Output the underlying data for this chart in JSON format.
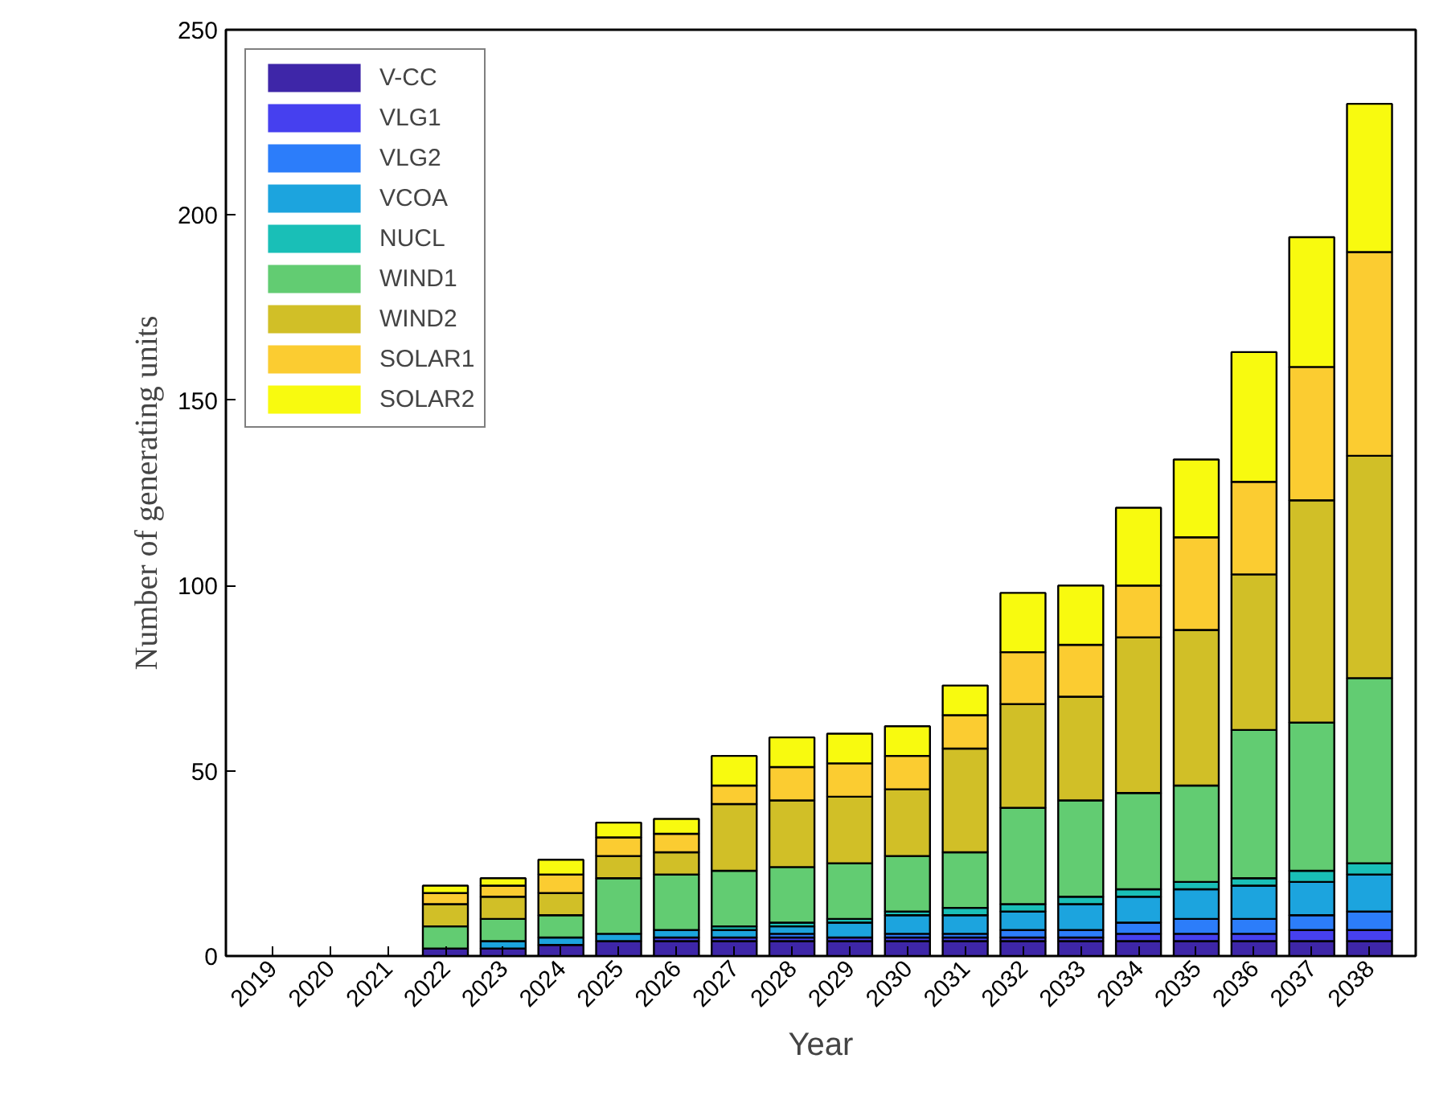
{
  "chart_data": {
    "type": "bar",
    "stacked": true,
    "xlabel": "Year",
    "ylabel": "Number of generating units",
    "categories": [
      "2019",
      "2020",
      "2021",
      "2022",
      "2023",
      "2024",
      "2025",
      "2026",
      "2027",
      "2028",
      "2029",
      "2030",
      "2031",
      "2032",
      "2033",
      "2034",
      "2035",
      "2036",
      "2037",
      "2038"
    ],
    "ylim": [
      0,
      250
    ],
    "yticks": [
      0,
      50,
      100,
      150,
      200,
      250
    ],
    "grid": false,
    "legend": "top left",
    "series": [
      {
        "name": "V-CC",
        "color": "#3e26a8",
        "values": [
          0,
          0,
          0,
          2,
          2,
          3,
          4,
          4,
          4,
          4,
          4,
          4,
          4,
          4,
          4,
          4,
          4,
          4,
          4,
          4
        ]
      },
      {
        "name": "VLG1",
        "color": "#4640ef",
        "values": [
          0,
          0,
          0,
          0,
          0,
          0,
          0,
          1,
          1,
          1,
          1,
          1,
          1,
          1,
          1,
          2,
          2,
          2,
          3,
          3
        ]
      },
      {
        "name": "VLG2",
        "color": "#2c7dfa",
        "values": [
          0,
          0,
          0,
          0,
          0,
          0,
          0,
          0,
          0,
          1,
          0,
          1,
          1,
          2,
          2,
          3,
          4,
          4,
          4,
          5
        ]
      },
      {
        "name": "VCOA",
        "color": "#1ca4de",
        "values": [
          0,
          0,
          0,
          0,
          2,
          2,
          2,
          2,
          2,
          2,
          4,
          5,
          5,
          5,
          7,
          7,
          8,
          9,
          9,
          10
        ]
      },
      {
        "name": "NUCL",
        "color": "#19bfb7",
        "values": [
          0,
          0,
          0,
          0,
          0,
          0,
          0,
          0,
          1,
          1,
          1,
          1,
          2,
          2,
          2,
          2,
          2,
          2,
          3,
          3
        ]
      },
      {
        "name": "WIND1",
        "color": "#62cc72",
        "values": [
          0,
          0,
          0,
          6,
          6,
          6,
          15,
          15,
          15,
          15,
          15,
          15,
          15,
          26,
          26,
          26,
          26,
          40,
          40,
          50
        ]
      },
      {
        "name": "WIND2",
        "color": "#d1bf27",
        "values": [
          0,
          0,
          0,
          6,
          6,
          6,
          6,
          6,
          18,
          18,
          18,
          18,
          28,
          28,
          28,
          42,
          42,
          42,
          60,
          60
        ]
      },
      {
        "name": "SOLAR1",
        "color": "#fbcc31",
        "values": [
          0,
          0,
          0,
          3,
          3,
          5,
          5,
          5,
          5,
          9,
          9,
          9,
          9,
          14,
          14,
          14,
          25,
          25,
          36,
          55
        ]
      },
      {
        "name": "SOLAR2",
        "color": "#f8fa0f",
        "values": [
          0,
          0,
          0,
          2,
          2,
          4,
          4,
          4,
          8,
          8,
          8,
          8,
          8,
          16,
          16,
          21,
          21,
          35,
          35,
          40
        ]
      }
    ]
  }
}
